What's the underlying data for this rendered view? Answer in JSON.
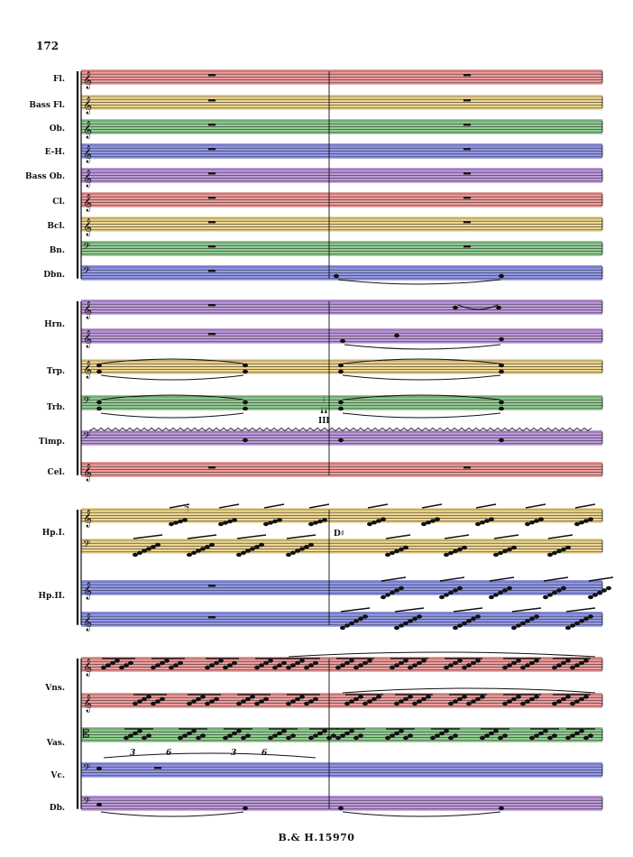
{
  "page_number": "172",
  "footer": "B.& H.15970",
  "instruments": [
    {
      "key": "fl",
      "label": "Fl.",
      "color": "#f08a8a"
    },
    {
      "key": "bassfl",
      "label": "Bass Fl.",
      "color": "#efd07a"
    },
    {
      "key": "ob",
      "label": "Ob.",
      "color": "#7cc57e"
    },
    {
      "key": "eh",
      "label": "E-H.",
      "color": "#7f86e6"
    },
    {
      "key": "bassob",
      "label": "Bass Ob.",
      "color": "#b488d8"
    },
    {
      "key": "cl",
      "label": "Cl.",
      "color": "#f08a8a"
    },
    {
      "key": "bcl",
      "label": "Bcl.",
      "color": "#efd07a"
    },
    {
      "key": "bn",
      "label": "Bn.",
      "color": "#7cc57e"
    },
    {
      "key": "dbn",
      "label": "Dbn.",
      "color": "#7f86e6"
    },
    {
      "key": "hrn",
      "label": "Hrn.",
      "color": "#b488d8"
    },
    {
      "key": "trp",
      "label": "Trp.",
      "color": "#efd07a"
    },
    {
      "key": "trb",
      "label": "Trb.",
      "color": "#7cc57e"
    },
    {
      "key": "timp",
      "label": "Timp.",
      "color": "#b488d8"
    },
    {
      "key": "cel",
      "label": "Cel.",
      "color": "#f08a8a"
    },
    {
      "key": "hp1",
      "label": "Hp.I.",
      "color": "#efd07a"
    },
    {
      "key": "hp2",
      "label": "Hp.II.",
      "color": "#7f86e6"
    },
    {
      "key": "vns",
      "label": "Vns.",
      "color": "#f08a8a"
    },
    {
      "key": "vas",
      "label": "Vas.",
      "color": "#7cc57e"
    },
    {
      "key": "vc",
      "label": "Vc.",
      "color": "#7f86e6"
    },
    {
      "key": "db",
      "label": "Db.",
      "color": "#b488d8"
    }
  ],
  "annotations": {
    "trb_roman_1": "I",
    "trb_roman_2": "II",
    "trb_roman_3": "III",
    "harp_pedal": "D♯",
    "tuplet_3": "3",
    "tuplet_6": "6"
  }
}
